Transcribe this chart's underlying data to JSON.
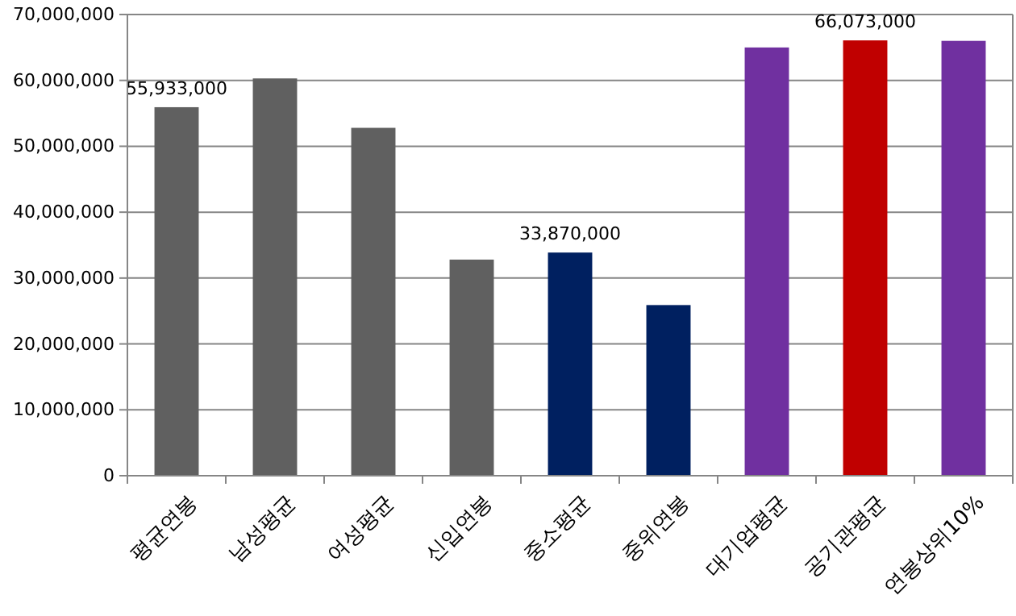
{
  "chart_data": {
    "type": "bar",
    "categories": [
      "평균연봉",
      "남성평균",
      "여성평균",
      "신입연봉",
      "중소평균",
      "중위연봉",
      "대기업평균",
      "공기관평균",
      "연봉상위10%"
    ],
    "values": [
      55933000,
      60300000,
      52800000,
      32800000,
      33870000,
      25900000,
      65000000,
      66073000,
      66000000
    ],
    "colors": [
      "#606060",
      "#606060",
      "#606060",
      "#606060",
      "#002060",
      "#002060",
      "#7030a0",
      "#c00000",
      "#7030a0"
    ],
    "value_labels": [
      "55,933,000",
      null,
      null,
      null,
      "33,870,000",
      null,
      null,
      "66,073,000",
      null
    ],
    "ylim": [
      0,
      70000000
    ],
    "yticks": [
      {
        "value": 0,
        "label": "0"
      },
      {
        "value": 10000000,
        "label": "10,000,000"
      },
      {
        "value": 20000000,
        "label": "20,000,000"
      },
      {
        "value": 30000000,
        "label": "30,000,000"
      },
      {
        "value": 40000000,
        "label": "40,000,000"
      },
      {
        "value": 50000000,
        "label": "50,000,000"
      },
      {
        "value": 60000000,
        "label": "60,000,000"
      },
      {
        "value": 70000000,
        "label": "70,000,000"
      }
    ],
    "grid": "y"
  }
}
